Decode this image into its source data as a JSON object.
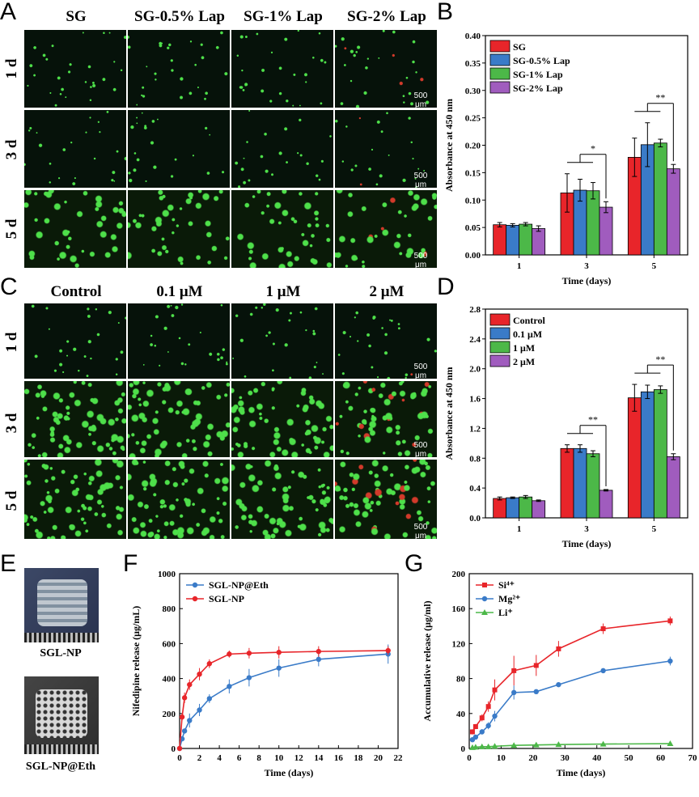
{
  "panel_letters": {
    "A": "A",
    "B": "B",
    "C": "C",
    "D": "D",
    "E": "E",
    "F": "F",
    "G": "G"
  },
  "panelA": {
    "columns": [
      "SG",
      "SG-0.5% Lap",
      "SG-1% Lap",
      "SG-2% Lap"
    ],
    "rows": [
      "1 d",
      "3 d",
      "5 d"
    ],
    "scalebar": "500 μm"
  },
  "panelC": {
    "columns": [
      "Control",
      "0.1 μM",
      "1 μM",
      "2 μM"
    ],
    "rows": [
      "1 d",
      "3 d",
      "5 d"
    ],
    "scalebar": "500 μm"
  },
  "panelE": {
    "captions": [
      "SGL-NP",
      "SGL-NP@Eth"
    ]
  },
  "colors": {
    "red": "#e8252a",
    "blue": "#3a7bc8",
    "green": "#4cb848",
    "purple": "#a05cbe",
    "grid": "#000000"
  },
  "chart_data": [
    {
      "id": "B",
      "type": "bar",
      "xlabel": "Time (days)",
      "ylabel": "Absorbance at 450 nm",
      "categories": [
        "1",
        "3",
        "5"
      ],
      "ylim": [
        0,
        0.4
      ],
      "yticks": [
        "0.00",
        "0.05",
        "0.10",
        "0.15",
        "0.20",
        "0.25",
        "0.30",
        "0.35",
        "0.40"
      ],
      "legend_position": "top-left",
      "series": [
        {
          "name": "SG",
          "values": [
            0.055,
            0.113,
            0.178
          ],
          "errors": [
            0.004,
            0.035,
            0.035
          ]
        },
        {
          "name": "SG-0.5% Lap",
          "values": [
            0.054,
            0.118,
            0.201
          ],
          "errors": [
            0.003,
            0.02,
            0.04
          ]
        },
        {
          "name": "SG-1% Lap",
          "values": [
            0.056,
            0.117,
            0.204
          ],
          "errors": [
            0.003,
            0.015,
            0.007
          ]
        },
        {
          "name": "SG-2% Lap",
          "values": [
            0.048,
            0.087,
            0.157
          ],
          "errors": [
            0.005,
            0.01,
            0.008
          ]
        }
      ],
      "annotations": [
        {
          "group": "3",
          "text": "*"
        },
        {
          "group": "5",
          "text": "**"
        }
      ]
    },
    {
      "id": "D",
      "type": "bar",
      "xlabel": "Time (days)",
      "ylabel": "Absorbance at 450 nm",
      "categories": [
        "1",
        "3",
        "5"
      ],
      "ylim": [
        0,
        2.8
      ],
      "yticks": [
        "0.0",
        "0.4",
        "0.8",
        "1.2",
        "1.6",
        "2.0",
        "2.4",
        "2.8"
      ],
      "legend_position": "top-left",
      "series": [
        {
          "name": "Control",
          "values": [
            0.26,
            0.93,
            1.61
          ],
          "errors": [
            0.02,
            0.05,
            0.18
          ]
        },
        {
          "name": "0.1 μM",
          "values": [
            0.27,
            0.93,
            1.69
          ],
          "errors": [
            0.01,
            0.05,
            0.09
          ]
        },
        {
          "name": "1 μM",
          "values": [
            0.28,
            0.86,
            1.72
          ],
          "errors": [
            0.02,
            0.04,
            0.05
          ]
        },
        {
          "name": "2 μM",
          "values": [
            0.23,
            0.37,
            0.82
          ],
          "errors": [
            0.01,
            0.01,
            0.04
          ]
        }
      ],
      "annotations": [
        {
          "group": "3",
          "text": "**"
        },
        {
          "group": "5",
          "text": "**"
        }
      ]
    },
    {
      "id": "F",
      "type": "line",
      "xlabel": "Time (days)",
      "ylabel": "Nifedipine release (μg/mL)",
      "xlim": [
        0,
        22
      ],
      "ylim": [
        0,
        1000
      ],
      "xticks": [
        "0",
        "2",
        "4",
        "6",
        "8",
        "10",
        "12",
        "14",
        "16",
        "18",
        "20",
        "22"
      ],
      "yticks": [
        "0",
        "200",
        "400",
        "600",
        "800",
        "1000"
      ],
      "legend_position": "top-left",
      "series": [
        {
          "name": "SGL-NP@Eth",
          "x": [
            0,
            0.25,
            0.5,
            1,
            2,
            3,
            5,
            7,
            10,
            14,
            21
          ],
          "y": [
            0,
            55,
            100,
            160,
            220,
            285,
            355,
            405,
            460,
            510,
            540
          ],
          "errors": [
            0,
            10,
            15,
            40,
            35,
            25,
            40,
            50,
            50,
            40,
            55
          ]
        },
        {
          "name": "SGL-NP",
          "x": [
            0,
            0.25,
            0.5,
            1,
            2,
            3,
            5,
            7,
            10,
            14,
            21
          ],
          "y": [
            0,
            180,
            290,
            365,
            425,
            485,
            540,
            545,
            550,
            555,
            560
          ],
          "errors": [
            0,
            20,
            30,
            30,
            35,
            25,
            20,
            30,
            35,
            30,
            25
          ]
        }
      ]
    },
    {
      "id": "G",
      "type": "line",
      "xlabel": "Time (days)",
      "ylabel": "Accumulative release (μg/ml)",
      "xlim": [
        0,
        70
      ],
      "ylim": [
        0,
        200
      ],
      "xticks": [
        "0",
        "10",
        "20",
        "30",
        "40",
        "50",
        "60",
        "70"
      ],
      "yticks": [
        "0",
        "40",
        "80",
        "120",
        "160",
        "200"
      ],
      "legend_position": "top-left",
      "series": [
        {
          "name": "Si⁴⁺",
          "x": [
            1,
            2,
            4,
            6,
            8,
            14,
            21,
            28,
            42,
            63
          ],
          "y": [
            19,
            25,
            35,
            48,
            67,
            89,
            95,
            114,
            137,
            146
          ],
          "errors": [
            3,
            3,
            4,
            6,
            12,
            17,
            12,
            9,
            6,
            5
          ]
        },
        {
          "name": "Mg²⁺",
          "x": [
            1,
            2,
            4,
            6,
            8,
            14,
            21,
            28,
            42,
            63
          ],
          "y": [
            10,
            13,
            19,
            26,
            37,
            64,
            65,
            73,
            89,
            100
          ],
          "errors": [
            2,
            2,
            3,
            4,
            6,
            8,
            2,
            2,
            1,
            5
          ]
        },
        {
          "name": "Li⁺",
          "x": [
            1,
            2,
            4,
            6,
            8,
            14,
            21,
            28,
            42,
            63
          ],
          "y": [
            1,
            1.5,
            2,
            2,
            2.5,
            3.5,
            4,
            4.5,
            5,
            5.5
          ],
          "errors": [
            0.3,
            0.3,
            0.3,
            0.3,
            0.3,
            0.5,
            0.5,
            0.5,
            0.5,
            0.5
          ]
        }
      ]
    }
  ]
}
